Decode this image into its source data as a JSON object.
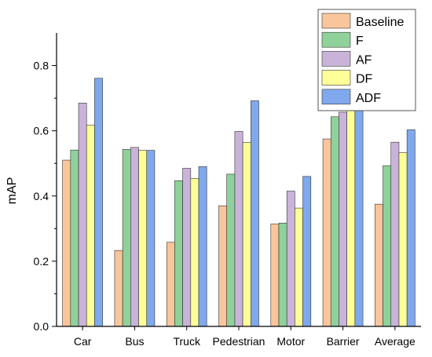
{
  "chart_data": {
    "type": "bar",
    "title": "",
    "xlabel": "",
    "ylabel": "mAP",
    "ylim": [
      0,
      0.9
    ],
    "yticks": [
      "0.0",
      "0.2",
      "0.4",
      "0.6",
      "0.8"
    ],
    "grid": false,
    "legend_position": "top-right",
    "categories": [
      "Car",
      "Bus",
      "Truck",
      "Pedestrian",
      "Motor",
      "Barrier",
      "Average"
    ],
    "series": [
      {
        "name": "Baseline",
        "color": "#f9c59a",
        "values": [
          0.51,
          0.233,
          0.258,
          0.37,
          0.314,
          0.575,
          0.375
        ]
      },
      {
        "name": "F",
        "color": "#8fd19a",
        "values": [
          0.541,
          0.543,
          0.447,
          0.467,
          0.317,
          0.643,
          0.493
        ]
      },
      {
        "name": "AF",
        "color": "#c9b3d9",
        "values": [
          0.685,
          0.549,
          0.485,
          0.598,
          0.415,
          0.657,
          0.565
        ]
      },
      {
        "name": "DF",
        "color": "#ffff99",
        "values": [
          0.617,
          0.54,
          0.454,
          0.564,
          0.363,
          0.662,
          0.533
        ]
      },
      {
        "name": "ADF",
        "color": "#7fa9ec",
        "values": [
          0.761,
          0.54,
          0.49,
          0.692,
          0.46,
          0.674,
          0.603
        ]
      }
    ]
  }
}
